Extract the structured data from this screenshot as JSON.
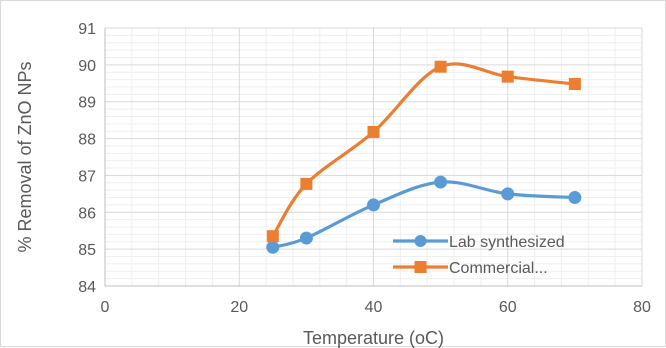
{
  "chart_data": {
    "type": "line",
    "xlabel": "Temperature (oC)",
    "ylabel": "% Removal of ZnO NPs",
    "xlim": [
      0,
      80
    ],
    "ylim": [
      84,
      91
    ],
    "x_ticks": [
      "0",
      "20",
      "40",
      "60",
      "80"
    ],
    "y_ticks": [
      "84",
      "85",
      "86",
      "87",
      "88",
      "89",
      "90",
      "91"
    ],
    "grid": {
      "major": true,
      "minor": true
    },
    "smooth": true,
    "legend_position": "inside-bottom-right",
    "series": [
      {
        "name": "Lab synthesized",
        "marker": "circle",
        "color": "#5b9bd5",
        "x": [
          25,
          30,
          40,
          50,
          60,
          70
        ],
        "y": [
          85.05,
          85.3,
          86.2,
          86.82,
          86.5,
          86.4
        ]
      },
      {
        "name": "Commercial...",
        "marker": "square",
        "color": "#ed7d31",
        "x": [
          25,
          30,
          40,
          50,
          60,
          70
        ],
        "y": [
          85.35,
          86.77,
          88.18,
          89.95,
          89.68,
          89.48
        ]
      }
    ]
  }
}
